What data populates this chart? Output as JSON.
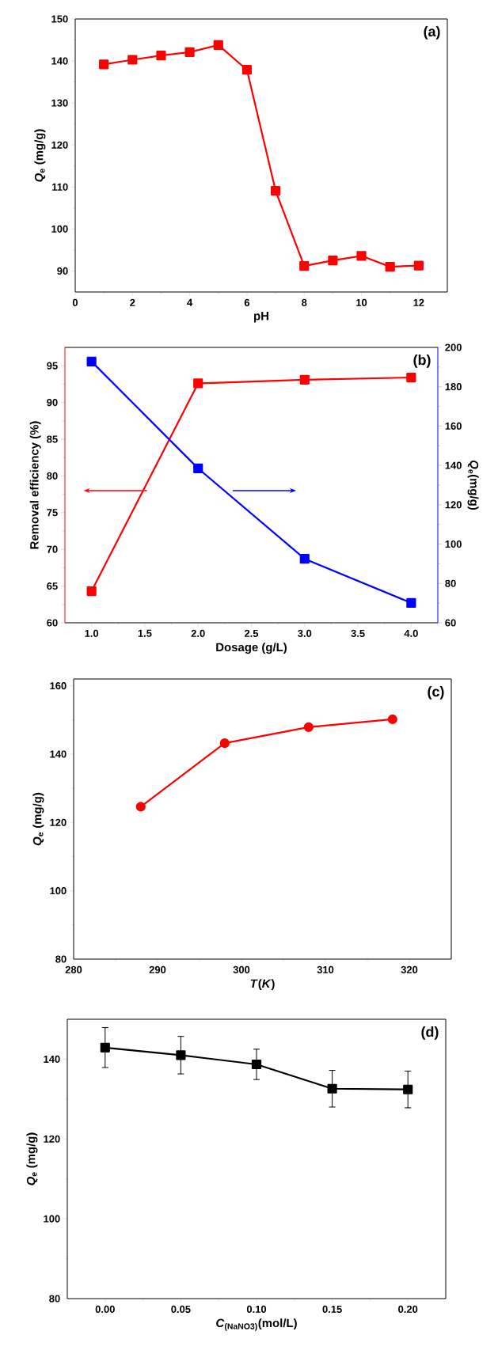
{
  "chart_data": [
    {
      "type": "line",
      "x": [
        1,
        2,
        3,
        4,
        5,
        6,
        7,
        8,
        9,
        10,
        11,
        12
      ],
      "marker": "square",
      "xlabel": "pH",
      "ylabel": "*Q*$_{e}$ (mg/g)",
      "annotations": [
        "(a)"
      ],
      "series": [
        {
          "color": "#ff0000",
          "values": [
            139.2,
            140.3,
            141.3,
            142.1,
            143.8,
            137.9,
            109.1,
            91.2,
            92.5,
            93.6,
            91.0,
            91.3
          ]
        }
      ],
      "xlim": [
        0,
        13
      ],
      "xticks": [
        0,
        2,
        4,
        6,
        8,
        10,
        12
      ],
      "ylim": [
        85,
        150
      ],
      "yticks": [
        90,
        100,
        110,
        120,
        130,
        140,
        150
      ]
    },
    {
      "type": "line",
      "x": [
        1,
        2,
        3,
        4
      ],
      "marker": "square",
      "xlabel": "Dosage (g/L)",
      "ylabel": "Removal efficiency (%)",
      "y2label": "*Q*$_{e}$(mg/g)",
      "annotations": [
        "(b)"
      ],
      "series": [
        {
          "color": "#ff0000",
          "values": [
            64.3,
            92.6,
            93.1,
            93.4
          ]
        },
        {
          "color": "#0000ff",
          "axis": "y2",
          "values": [
            192.8,
            138.5,
            92.5,
            70.1
          ]
        }
      ],
      "xlim": [
        0.75,
        4.25
      ],
      "xticks": [
        {
          "value": 1,
          "label": "1.0"
        },
        {
          "value": 1.5,
          "label": "1.5"
        },
        {
          "value": 2,
          "label": "2.0"
        },
        {
          "value": 2.5,
          "label": "2.5"
        },
        {
          "value": 3,
          "label": "3.0"
        },
        {
          "value": 3.5,
          "label": "3.5"
        },
        {
          "value": 4,
          "label": "4.0"
        }
      ],
      "ylim": [
        60,
        97.5
      ],
      "yticks": [
        60,
        65,
        70,
        75,
        80,
        85,
        90,
        95
      ],
      "y2lim": [
        60,
        200
      ],
      "y2ticks": [
        60,
        80,
        100,
        120,
        140,
        160,
        180,
        200
      ]
    },
    {
      "type": "line",
      "x": [
        288,
        298,
        308,
        318
      ],
      "marker": "circle",
      "xlabel": "*T*(*K*)",
      "ylabel": "*Q*$_{e}$ (mg/g)",
      "annotations": [
        "(c)"
      ],
      "series": [
        {
          "color": "#ff0000",
          "values": [
            124.6,
            143.2,
            147.9,
            150.2
          ]
        }
      ],
      "xlim": [
        280,
        325
      ],
      "xticks": [
        280,
        290,
        300,
        310,
        320
      ],
      "ylim": [
        80,
        162
      ],
      "yticks": [
        80,
        100,
        120,
        140,
        160
      ]
    },
    {
      "type": "line",
      "x": [
        0,
        0.05,
        0.1,
        0.15,
        0.2
      ],
      "marker": "square",
      "xlabel": "*C*$_{(NaNO3)}$(mol/L)",
      "ylabel": "*Q*$_{e}$ (mg/g)",
      "annotations": [
        "(d)"
      ],
      "series": [
        {
          "color": "#000000",
          "values": [
            142.9,
            141.0,
            138.7,
            132.6,
            132.4
          ],
          "errors": [
            5,
            4.7,
            3.8,
            4.6,
            4.6
          ]
        }
      ],
      "xlim": [
        -0.025,
        0.225
      ],
      "xticks": [
        {
          "value": 0,
          "label": "0.00"
        },
        {
          "value": 0.05,
          "label": "0.05"
        },
        {
          "value": 0.1,
          "label": "0.10"
        },
        {
          "value": 0.15,
          "label": "0.15"
        },
        {
          "value": 0.2,
          "label": "0.20"
        }
      ],
      "ylim": [
        80,
        150
      ],
      "yticks": [
        80,
        100,
        120,
        140
      ]
    }
  ]
}
